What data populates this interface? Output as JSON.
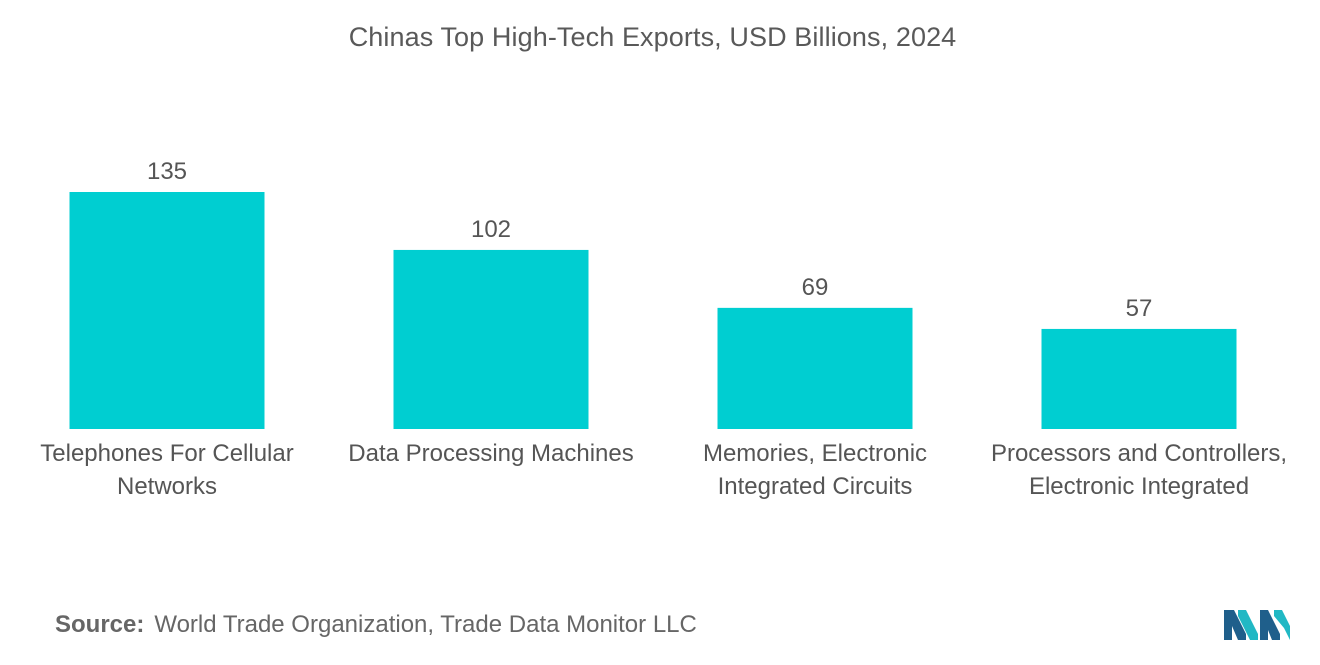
{
  "chart_data": {
    "type": "bar",
    "title": "Chinas Top High-Tech Exports, USD Billions, 2024",
    "categories": [
      "Telephones For Cellular Networks",
      "Data Processing Machines",
      "Memories, Electronic Integrated Circuits",
      "Processors and Controllers, Electronic Integrated"
    ],
    "values": [
      135,
      102,
      69,
      57
    ],
    "data_labels": [
      "135",
      "102",
      "69",
      "57"
    ],
    "xlabel": "",
    "ylabel": "",
    "ylim": [
      0,
      135
    ],
    "grid": false,
    "legend": "none",
    "bar_color": "#00CED1"
  },
  "source": {
    "label": "Source:",
    "text": "World Trade Organization, Trade Data Monitor LLC"
  },
  "logo": {
    "icon": "mordor-intelligence-logo-icon",
    "colors": [
      "#1f5f8b",
      "#21b8c4"
    ]
  }
}
